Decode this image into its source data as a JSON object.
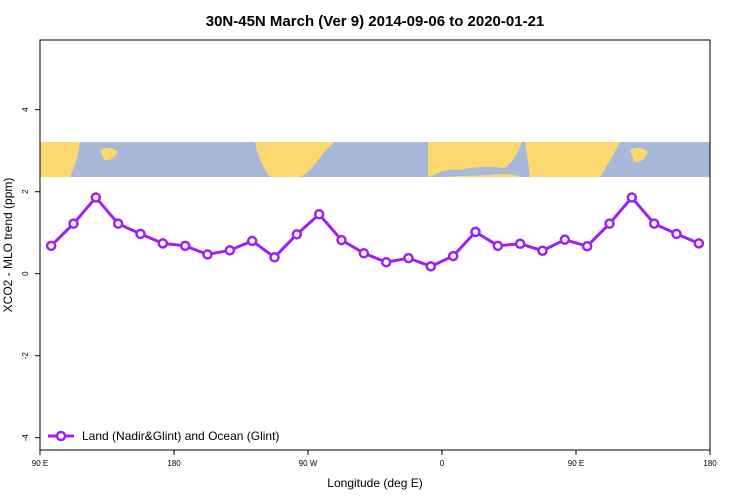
{
  "chart_data": {
    "type": "line",
    "title": "30N-45N March (Ver 9)   2014-09-06 to 2020-01-21",
    "xlabel": "Longitude (deg E)",
    "ylabel": "XCO2 - MLO trend (ppm)",
    "x": [
      97.5,
      112.5,
      127.5,
      142.5,
      157.5,
      172.5,
      187.5,
      202.5,
      217.5,
      232.5,
      247.5,
      262.5,
      277.5,
      292.5,
      307.5,
      322.5,
      337.5,
      352.5,
      367.5,
      382.5,
      397.5,
      412.5,
      427.5,
      442.5,
      457.5,
      472.5,
      487.5,
      502.5,
      517.5,
      532.5
    ],
    "series": [
      {
        "name": "Land (Nadir&Glint) and Ocean (Glint)",
        "color": "#a020f0",
        "values": [
          0.68,
          1.22,
          1.86,
          1.22,
          0.97,
          0.74,
          0.68,
          0.47,
          0.57,
          0.8,
          0.4,
          0.96,
          1.45,
          0.82,
          0.5,
          0.28,
          0.38,
          0.18,
          0.43,
          1.02,
          0.68,
          0.73,
          0.56,
          0.83,
          0.67,
          1.22,
          1.86,
          1.22,
          0.97,
          0.74
        ]
      }
    ],
    "xlim": [
      90,
      540
    ],
    "xticks": [
      {
        "value": 90,
        "label": "90 E"
      },
      {
        "value": 180,
        "label": "180"
      },
      {
        "value": 270,
        "label": "90 W"
      },
      {
        "value": 360,
        "label": "0"
      },
      {
        "value": 450,
        "label": "90 E"
      },
      {
        "value": 540,
        "label": "180"
      }
    ],
    "ylim": [
      -4.3,
      5.7
    ],
    "yticks": [
      -4,
      -2,
      0,
      2,
      4
    ],
    "grid": false,
    "legend": "bottom-left"
  }
}
